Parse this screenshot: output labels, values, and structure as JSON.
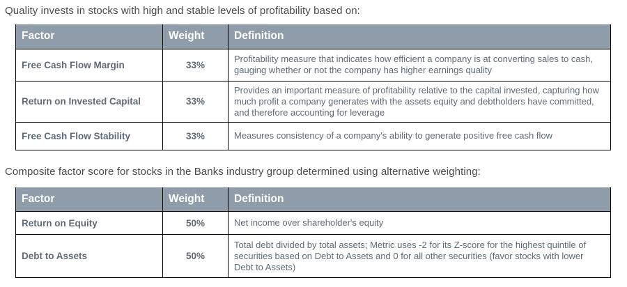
{
  "page": {
    "intro1": "Quality invests in stocks with high and stable levels of profitability based on:",
    "intro2": "Composite factor score for stocks in the Banks industry group determined using alternative weighting:"
  },
  "colors": {
    "header_bg": "#8f9daa",
    "header_text": "#ffffff",
    "body_text": "#5d6b79",
    "intro_text": "#4a4a4a",
    "border": "#000000"
  },
  "tables": [
    {
      "columns": [
        "Factor",
        "Weight",
        "Definition"
      ],
      "rows": [
        {
          "factor": "Free Cash Flow Margin",
          "weight": "33%",
          "definition": "Profitability measure that indicates how efficient a company is at converting sales to cash, gauging whether or not the company has higher earnings quality"
        },
        {
          "factor": "Return on Invested Capital",
          "weight": "33%",
          "definition": "Provides an important measure of profitability relative to the capital invested, capturing how much profit a company generates with the assets equity and debtholders have committed, and therefore accounting for leverage"
        },
        {
          "factor": "Free Cash Flow Stability",
          "weight": "33%",
          "definition": "Measures consistency of a company's ability to generate positive free cash flow"
        }
      ]
    },
    {
      "columns": [
        "Factor",
        "Weight",
        "Definition"
      ],
      "rows": [
        {
          "factor": "Return on Equity",
          "weight": "50%",
          "definition": "Net income over shareholder's equity"
        },
        {
          "factor": "Debt to Assets",
          "weight": "50%",
          "definition": "Total debt divided by total assets; Metric uses -2 for its Z-score for the highest quintile of securities based on Debt to Assets and 0 for all other securities (favor stocks with lower Debt to Assets)"
        }
      ]
    }
  ]
}
